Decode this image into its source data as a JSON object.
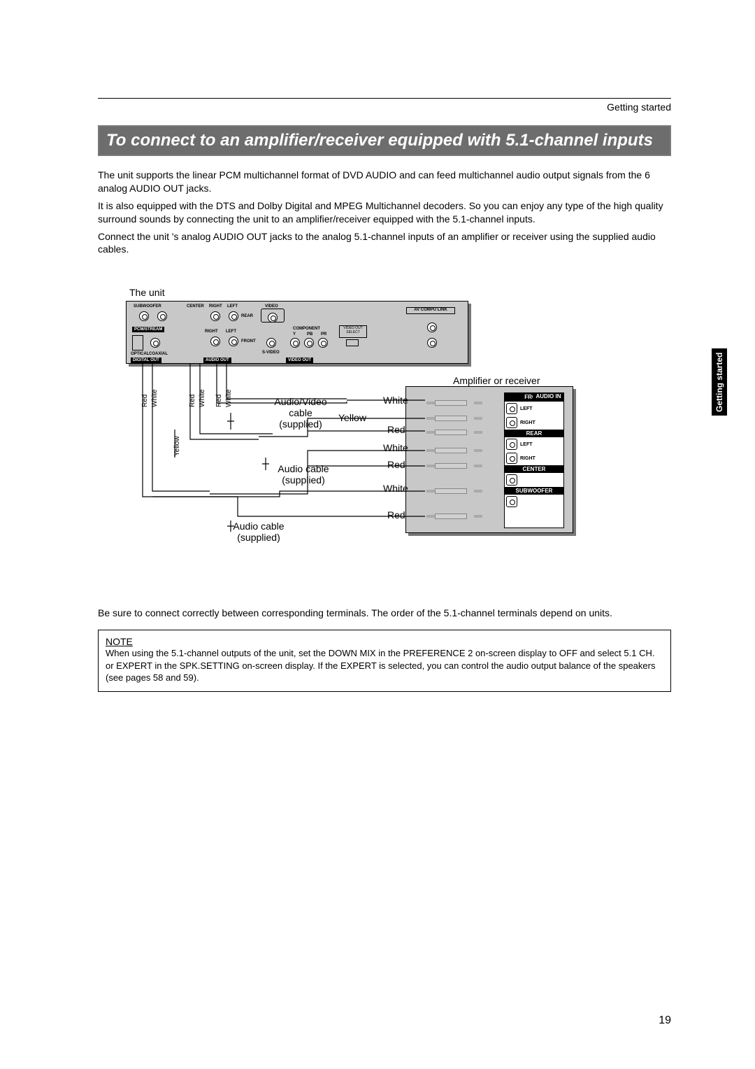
{
  "breadcrumb": "Getting started",
  "title": "To connect to an amplifier/receiver equipped with 5.1-channel inputs",
  "paragraphs": [
    "The unit supports the linear PCM multichannel format of DVD AUDIO and can feed multichannel audio output signals from the 6 analog AUDIO OUT jacks.",
    "It is also equipped with the DTS and Dolby Digital and MPEG Multichannel decoders. So you can enjoy any type of the high quality surround sounds by connecting the unit to an amplifier/receiver equipped with the 5.1-channel inputs.",
    "Connect the unit 's analog AUDIO OUT jacks to the analog 5.1-channel inputs of an amplifier or receiver using the supplied audio cables."
  ],
  "diagram": {
    "unit_label": "The unit",
    "amp_label": "Amplifier or receiver",
    "unit_panel": {
      "labels": {
        "subwoofer": "SUBWOOFER",
        "center": "CENTER",
        "right": "RIGHT",
        "left": "LEFT",
        "rear": "REAR",
        "pcm_stream": "PCM/STREAM",
        "right2": "RIGHT",
        "left2": "LEFT",
        "front": "FRONT",
        "optical": "OPTICAL",
        "coaxial": "COAXIAL",
        "digital_out": "DIGITAL OUT",
        "audio_out": "AUDIO OUT",
        "video": "VIDEO",
        "component": "COMPONENT",
        "y": "Y",
        "pb": "PB",
        "pr": "PR",
        "s_video": "S-VIDEO",
        "video_out": "VIDEO OUT",
        "video_out_select": "VIDEO OUT SELECT",
        "av_compu": "AV COMPU LINK"
      }
    },
    "amp_panel": {
      "audio_in": "AUDIO IN",
      "front": "FRONT",
      "left": "LEFT",
      "right": "RIGHT",
      "rear": "REAR",
      "center": "CENTER",
      "subwoofer": "SUBWOOFER"
    },
    "cable_labels": {
      "av": "Audio/Video\ncable\n(supplied)",
      "audio1": "Audio cable\n(supplied)",
      "audio2": "Audio cable\n(supplied)"
    },
    "colors": {
      "red": "Red",
      "white": "White",
      "yellow": "Yellow"
    },
    "vlabels": [
      "Red",
      "White",
      "Red",
      "White",
      "Red",
      "White",
      "Yellow"
    ],
    "right_colors_order": [
      "White",
      "Yellow",
      "Red",
      "White",
      "Red",
      "White",
      "Red"
    ]
  },
  "caution": "Be sure to connect correctly between corresponding terminals. The order of the 5.1-channel terminals depend on units.",
  "note": {
    "heading": "NOTE",
    "segments": [
      {
        "t": "When using the 5.1-channel outputs of the unit, set the ",
        "b": false
      },
      {
        "t": "DOWN MIX",
        "b": false
      },
      {
        "t": " in the ",
        "b": false
      },
      {
        "t": "PREFERENCE 2",
        "b": false
      },
      {
        "t": " on-screen display to ",
        "b": false
      },
      {
        "t": "OFF",
        "b": false
      },
      {
        "t": " and select ",
        "b": false
      },
      {
        "t": "5.1 CH.",
        "b": false
      },
      {
        "t": " or ",
        "b": false
      },
      {
        "t": "EXPERT",
        "b": false
      },
      {
        "t": " in the ",
        "b": false
      },
      {
        "t": "SPK.SETTING",
        "b": false
      },
      {
        "t": " on-screen display. If the ",
        "b": false
      },
      {
        "t": "EXPERT",
        "b": false
      },
      {
        "t": " is selected, you can control the audio output balance of the speakers (see pages 58 and 59).",
        "b": false
      }
    ]
  },
  "side_tab": "Getting started",
  "page_number": "19",
  "wire_style": {
    "stroke": "#000000",
    "width": 1
  }
}
